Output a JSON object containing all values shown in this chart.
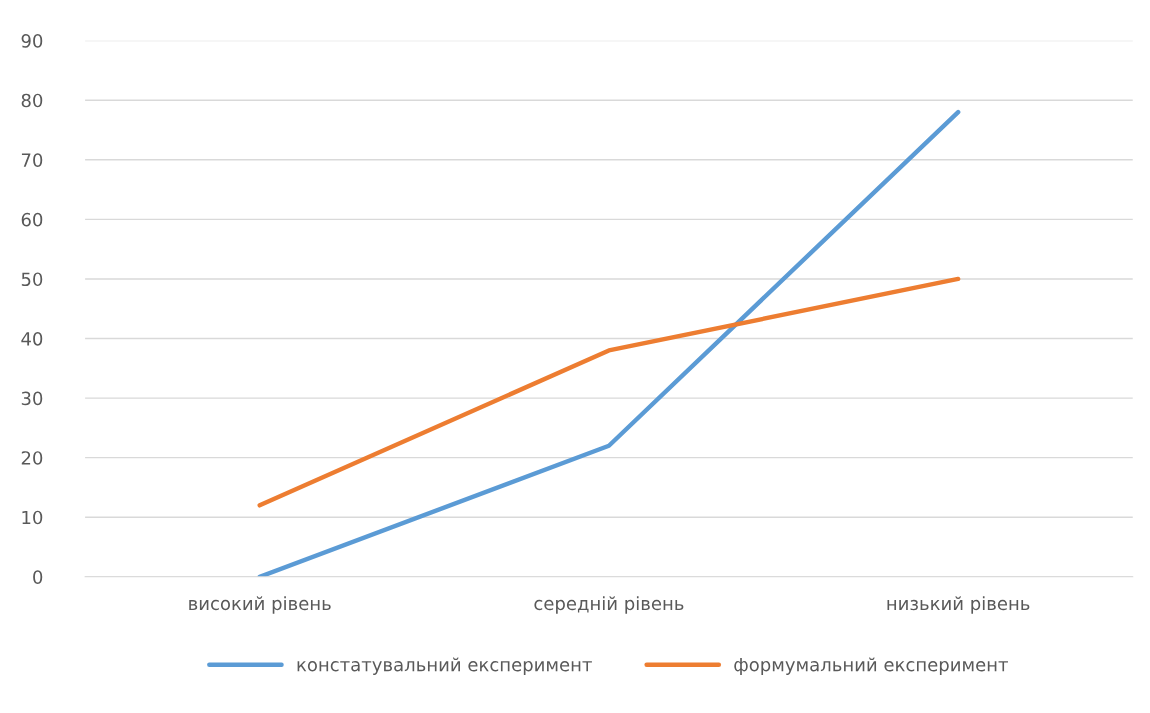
{
  "chart_data": {
    "type": "line",
    "categories": [
      "високий рівень",
      "середній рівень",
      "низький рівень"
    ],
    "series": [
      {
        "name": "констатувальний експеримент",
        "color": "#5b9bd5",
        "values": [
          0,
          22,
          78
        ]
      },
      {
        "name": "формумальний експеримент",
        "color": "#ed7d31",
        "values": [
          12,
          38,
          50
        ]
      }
    ],
    "ylim": [
      0,
      90
    ],
    "yticks": [
      0,
      10,
      20,
      30,
      40,
      50,
      60,
      70,
      80,
      90
    ],
    "grid": "y",
    "legend": "bottom",
    "line_style": "solid",
    "marker": "none"
  }
}
